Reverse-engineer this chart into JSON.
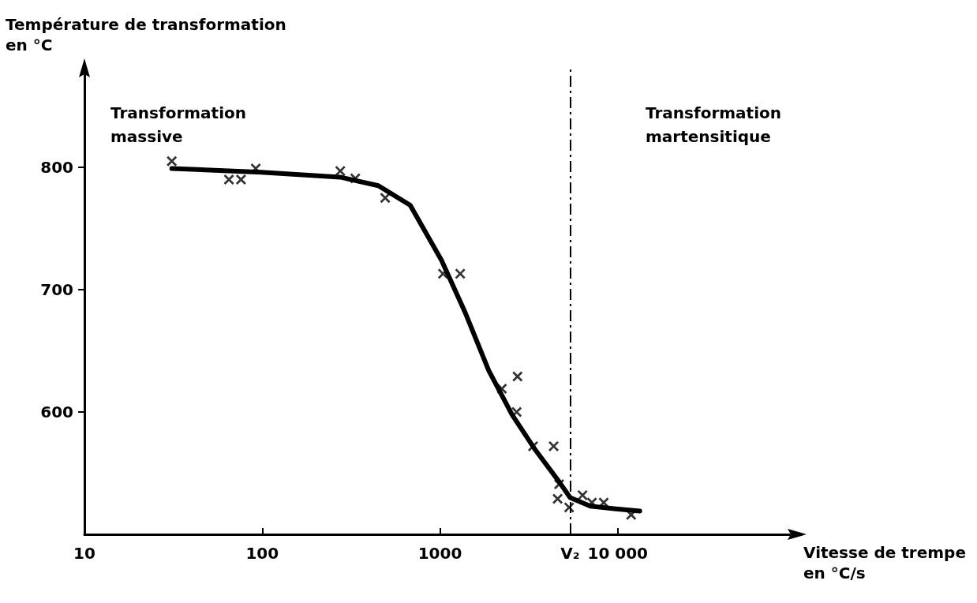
{
  "chart_data": {
    "type": "scatter",
    "xlabel": "Vitesse de trempe\nen °C/s",
    "ylabel": "Température de transformation\nen °C",
    "annotations": [
      "Transformation\nmassive",
      "Transformation\nmartensitique"
    ],
    "log": "x",
    "xlim": [
      10,
      100000
    ],
    "xticks": [
      10,
      100,
      1000,
      {
        "value": 5400,
        "label": "V₂"
      },
      {
        "value": 10000,
        "label": "10 000"
      }
    ],
    "ylim": [
      500,
      880
    ],
    "yticks": [
      600,
      700,
      800
    ],
    "grid": false,
    "ref_lines": [
      {
        "axis": "x",
        "value": 5400,
        "color": "#000000",
        "line_style": "dashdot"
      }
    ],
    "series": [
      {
        "color": "#000000",
        "marker": "cross",
        "x": [
          31,
          65,
          76,
          92,
          275,
          334,
          492,
          1040,
          1300,
          2230,
          2730,
          2700,
          3340,
          4360,
          4680,
          4590,
          5330,
          6340,
          7160,
          8340,
          11900
        ],
        "values": [
          805,
          790,
          790,
          799,
          797,
          791,
          775,
          713,
          713,
          619,
          629,
          600,
          572,
          572,
          541,
          529,
          522,
          532,
          526,
          526,
          516
        ]
      },
      {
        "type": "line",
        "color": "#000000",
        "marker": "none",
        "line_style": "solid",
        "x": [
          31,
          99,
          274,
          450,
          680,
          1020,
          1380,
          1880,
          2540,
          3440,
          4680,
          5400,
          7010,
          9510,
          13300
        ],
        "values": [
          799,
          796,
          792,
          785,
          769,
          724,
          682,
          634,
          598,
          569,
          543,
          530,
          523,
          521,
          519
        ]
      }
    ]
  }
}
